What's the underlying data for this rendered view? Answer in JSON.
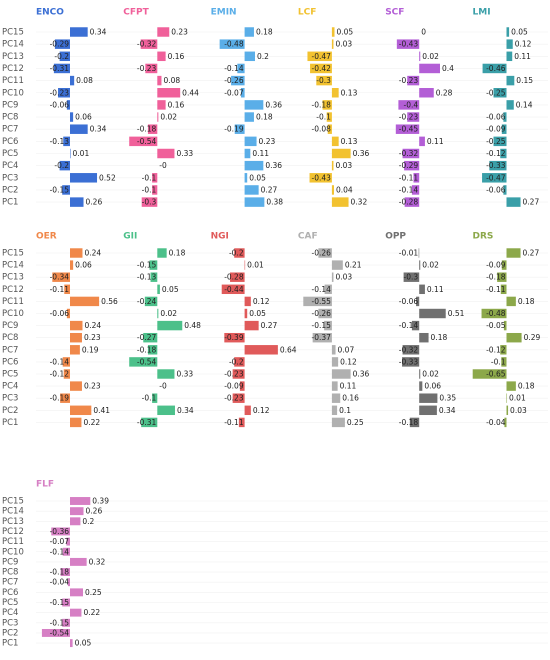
{
  "chart_data": {
    "type": "bar",
    "categories": [
      "PC15",
      "PC14",
      "PC13",
      "PC12",
      "PC11",
      "PC10",
      "PC9",
      "PC8",
      "PC7",
      "PC6",
      "PC5",
      "PC4",
      "PC3",
      "PC2",
      "PC1"
    ],
    "panels": [
      {
        "title": "ENCO",
        "color": "#3b6fd4",
        "values": [
          0.34,
          -0.29,
          -0.2,
          -0.31,
          0.08,
          -0.23,
          -0.06,
          0.06,
          0.34,
          -0.13,
          0.01,
          -0.2,
          0.52,
          -0.15,
          0.26
        ]
      },
      {
        "title": "CFPT",
        "color": "#f0609a",
        "values": [
          0.23,
          -0.32,
          0.16,
          -0.23,
          0.08,
          0.44,
          0.16,
          0.02,
          -0.18,
          -0.54,
          0.33,
          0,
          -0.1,
          -0.1,
          -0.3
        ],
        "value_labels": [
          "0.23",
          "-0.32",
          "0.16",
          "-0.23",
          "0.08",
          "0.44",
          "0.16",
          "0.02",
          "-0.18",
          "-0.54",
          "0.33",
          "-0",
          "-0.1",
          "-0.1",
          "-0.3"
        ]
      },
      {
        "title": "EMIN",
        "color": "#5aaee8",
        "values": [
          0.18,
          -0.48,
          0.2,
          -0.14,
          -0.26,
          -0.07,
          0.36,
          0.18,
          -0.19,
          0.23,
          0.11,
          0.36,
          0.05,
          0.27,
          0.38
        ]
      },
      {
        "title": "LCF",
        "color": "#f2c230",
        "values": [
          0.05,
          0.03,
          -0.47,
          -0.42,
          -0.3,
          0.13,
          -0.18,
          -0.1,
          -0.08,
          0.13,
          0.36,
          0.03,
          -0.43,
          0.04,
          0.32
        ]
      },
      {
        "title": "SCF",
        "color": "#b35ed6",
        "values": [
          0,
          -0.43,
          0.02,
          0.4,
          -0.23,
          0.28,
          -0.4,
          -0.23,
          -0.45,
          0.11,
          -0.32,
          -0.29,
          -0.11,
          -0.14,
          -0.28
        ]
      },
      {
        "title": "LMI",
        "color": "#3a9fa8",
        "values": [
          0.05,
          0.12,
          0.11,
          -0.46,
          0.15,
          -0.25,
          0.14,
          -0.06,
          -0.09,
          -0.25,
          -0.12,
          -0.33,
          -0.47,
          -0.06,
          0.27
        ]
      },
      {
        "title": "OER",
        "color": "#f0884a",
        "values": [
          0.24,
          0.06,
          -0.34,
          -0.11,
          0.56,
          -0.06,
          0.24,
          0.23,
          0.19,
          -0.14,
          -0.12,
          0.23,
          -0.19,
          0.41,
          0.22
        ]
      },
      {
        "title": "GII",
        "color": "#4cc08a",
        "values": [
          0.18,
          -0.15,
          -0.13,
          0.05,
          -0.24,
          0.02,
          0.48,
          -0.27,
          -0.18,
          -0.54,
          0.33,
          0,
          -0.1,
          0.34,
          -0.31
        ],
        "value_labels": [
          "0.18",
          "-0.15",
          "-0.13",
          "0.05",
          "-0.24",
          "0.02",
          "0.48",
          "-0.27",
          "-0.18",
          "-0.54",
          "0.33",
          "-0",
          "-0.1",
          "0.34",
          "-0.31"
        ]
      },
      {
        "title": "NGI",
        "color": "#e05a5a",
        "values": [
          -0.2,
          0.01,
          -0.28,
          -0.44,
          0.12,
          0.05,
          0.27,
          -0.39,
          0.64,
          -0.2,
          -0.23,
          -0.09,
          -0.23,
          0.12,
          -0.11
        ]
      },
      {
        "title": "CAF",
        "color": "#b0b0b0",
        "values": [
          -0.26,
          0.21,
          0.03,
          -0.14,
          -0.55,
          -0.26,
          -0.15,
          -0.37,
          0.07,
          0.12,
          0.36,
          0.11,
          0.16,
          0.1,
          0.25
        ]
      },
      {
        "title": "OPP",
        "color": "#707070",
        "values": [
          -0.01,
          0.02,
          -0.3,
          0.11,
          -0.06,
          0.51,
          -0.14,
          0.18,
          -0.32,
          -0.33,
          0.02,
          0.06,
          0.35,
          0.34,
          -0.18
        ]
      },
      {
        "title": "DRS",
        "color": "#8ca84a",
        "values": [
          0.27,
          -0.09,
          -0.18,
          -0.11,
          0.18,
          -0.48,
          -0.05,
          0.29,
          -0.12,
          -0.1,
          -0.65,
          0.18,
          0.01,
          0.03,
          -0.04
        ]
      },
      {
        "title": "FLF",
        "color": "#d67fc4",
        "values": [
          0.39,
          0.26,
          0.2,
          -0.36,
          -0.07,
          -0.14,
          0.32,
          -0.18,
          -0.04,
          0.25,
          -0.15,
          0.22,
          -0.15,
          -0.54,
          0.05
        ]
      }
    ]
  }
}
